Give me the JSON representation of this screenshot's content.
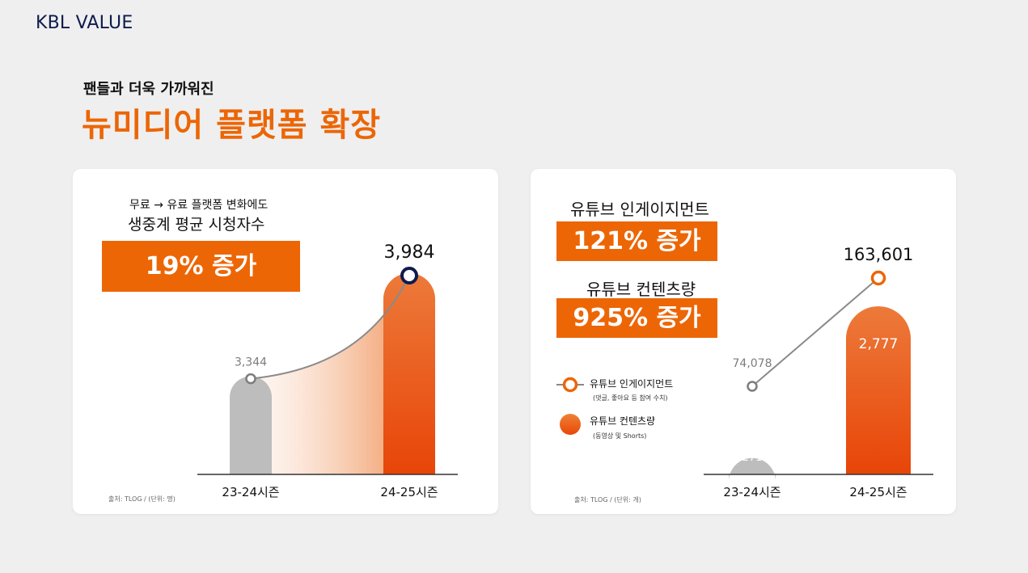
{
  "header": {
    "brand": "KBL VALUE",
    "subtitle": "팬들과 더욱 가까워진",
    "title": "뉴미디어 플랫폼 확장"
  },
  "colors": {
    "accent": "#ec6606",
    "navy": "#0f1b4c",
    "gray_bar": "#bdbdbd"
  },
  "left_card": {
    "desc_line1": "무료 → 유료 플랫폼 변화에도",
    "desc_line2": "생중계 평균 시청자수",
    "highlight": "19% 증가",
    "source": "출처: TLOG / (단위: 명)"
  },
  "right_card": {
    "metric1_label": "유튜브 인게이지먼트",
    "metric1_value": "121% 증가",
    "metric2_label": "유튜브 컨텐츠량",
    "metric2_value": "925% 증가",
    "legend": [
      {
        "label": "유튜브 인게이지먼트",
        "sublabel": "(댓글, 좋아요 등 참여 수치)",
        "marker": "circle-outline"
      },
      {
        "label": "유튜브 컨텐츠량",
        "sublabel": "(동영상 및 Shorts)",
        "marker": "filled-dot"
      }
    ],
    "source": "출처: TLOG / (단위: 개)"
  },
  "chart_data": [
    {
      "type": "bar",
      "categories": [
        "23-24시즌",
        "24-25시즌"
      ],
      "series": [
        {
          "values": [
            3344,
            3984
          ]
        }
      ],
      "data_labels": [
        "3,344",
        "3,984"
      ],
      "overlay": "line"
    },
    {
      "type": "bar",
      "categories": [
        "23-24시즌",
        "24-25시즌"
      ],
      "series": [
        {
          "name": "유튜브 컨텐츠량",
          "type": "bar",
          "values": [
            271,
            2777
          ],
          "labels": [
            "271",
            "2,777"
          ]
        },
        {
          "name": "유튜브 인게이지먼트",
          "type": "line",
          "values": [
            74078,
            163601
          ],
          "labels": [
            "74,078",
            "163,601"
          ]
        }
      ]
    }
  ]
}
